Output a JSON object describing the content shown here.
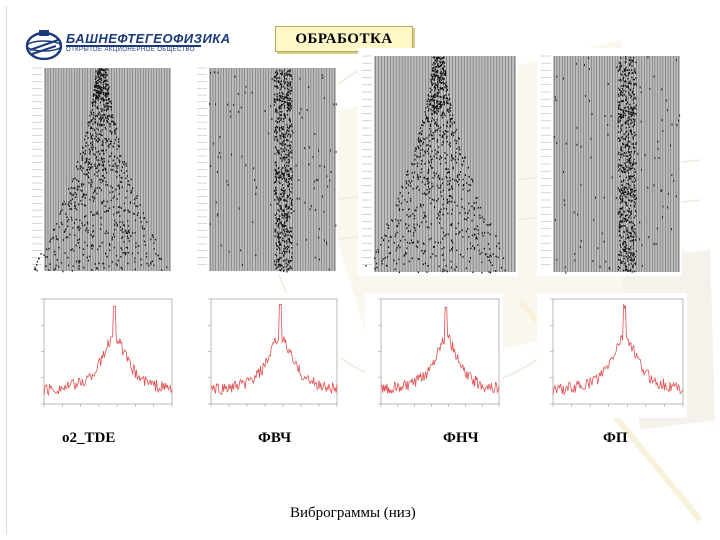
{
  "header": {
    "logo_name": "БАШНЕФТЕГЕОФИЗИКА",
    "logo_subtitle": "ОТКРЫТОЕ АКЦИОНЕРНОЕ ОБЩЕСТВО",
    "title": "ОБРАБОТКА"
  },
  "columns": [
    {
      "label": "о2_TDE",
      "seismic_style": "fan"
    },
    {
      "label": "ФВЧ",
      "seismic_style": "band"
    },
    {
      "label": "ФНЧ",
      "seismic_style": "fan"
    },
    {
      "label": "ФП",
      "seismic_style": "band"
    }
  ],
  "caption": "Виброграммы (низ)",
  "colors": {
    "spectrum_line": "#e05050",
    "title_bg": "#fff7c8",
    "logo": "#1b3a7a"
  }
}
